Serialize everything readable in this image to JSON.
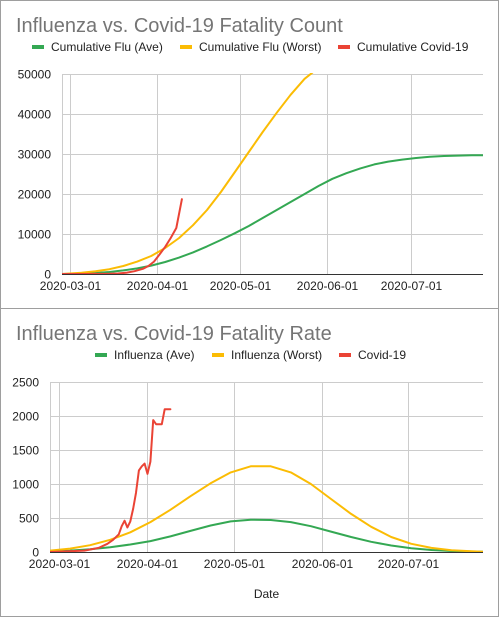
{
  "colors": {
    "green": "#34a853",
    "yellow": "#fbbc04",
    "red": "#ea4335",
    "grid": "#cccccc",
    "border": "#9e9e9e"
  },
  "chart_data": [
    {
      "type": "line",
      "title": "Influenza vs. Covid-19 Fatality Count",
      "xlabel": "",
      "ylabel": "",
      "legend_position": "top",
      "grid": true,
      "xlim": [
        "2020-02-27",
        "2020-07-27"
      ],
      "ylim": [
        0,
        50000
      ],
      "y_ticks": [
        "0",
        "10000",
        "20000",
        "30000",
        "40000",
        "50000"
      ],
      "y_tick_values": [
        0,
        10000,
        20000,
        30000,
        40000,
        50000
      ],
      "x_ticks": [
        "2020-03-01",
        "2020-04-01",
        "2020-05-01",
        "2020-06-01",
        "2020-07-01"
      ],
      "series": [
        {
          "name": "Cumulative Flu (Ave)",
          "color_key": "green",
          "x": [
            "2020-02-27",
            "2020-03-05",
            "2020-03-10",
            "2020-03-15",
            "2020-03-20",
            "2020-03-25",
            "2020-03-30",
            "2020-04-04",
            "2020-04-09",
            "2020-04-14",
            "2020-04-19",
            "2020-04-24",
            "2020-04-29",
            "2020-05-04",
            "2020-05-09",
            "2020-05-14",
            "2020-05-19",
            "2020-05-24",
            "2020-05-29",
            "2020-06-03",
            "2020-06-08",
            "2020-06-13",
            "2020-06-18",
            "2020-06-23",
            "2020-06-28",
            "2020-07-03",
            "2020-07-08",
            "2020-07-13",
            "2020-07-18",
            "2020-07-23",
            "2020-07-27"
          ],
          "y": [
            0,
            100,
            250,
            500,
            900,
            1400,
            2100,
            3000,
            4100,
            5400,
            6900,
            8500,
            10200,
            12000,
            14000,
            16000,
            18000,
            20000,
            22000,
            23800,
            25200,
            26400,
            27400,
            28100,
            28600,
            29000,
            29300,
            29500,
            29600,
            29700,
            29700
          ]
        },
        {
          "name": "Cumulative Flu (Worst)",
          "color_key": "yellow",
          "x": [
            "2020-02-27",
            "2020-03-05",
            "2020-03-10",
            "2020-03-15",
            "2020-03-20",
            "2020-03-25",
            "2020-03-30",
            "2020-04-04",
            "2020-04-09",
            "2020-04-14",
            "2020-04-19",
            "2020-04-24",
            "2020-04-29",
            "2020-05-04",
            "2020-05-09",
            "2020-05-14",
            "2020-05-19",
            "2020-05-24",
            "2020-05-28"
          ],
          "y": [
            0,
            300,
            700,
            1200,
            2000,
            3100,
            4500,
            6500,
            9000,
            12200,
            16000,
            20500,
            25500,
            30500,
            35500,
            40300,
            44800,
            48800,
            51000
          ]
        },
        {
          "name": "Cumulative Covid-19",
          "color_key": "red",
          "x": [
            "2020-02-27",
            "2020-03-05",
            "2020-03-10",
            "2020-03-15",
            "2020-03-18",
            "2020-03-21",
            "2020-03-24",
            "2020-03-27",
            "2020-03-29",
            "2020-03-31",
            "2020-04-02",
            "2020-04-04",
            "2020-04-06",
            "2020-04-08",
            "2020-04-10"
          ],
          "y": [
            0,
            10,
            28,
            60,
            120,
            300,
            700,
            1300,
            2000,
            3100,
            4900,
            6800,
            9000,
            11500,
            18700
          ]
        }
      ]
    },
    {
      "type": "line",
      "title": "Influenza vs. Covid-19 Fatality Rate",
      "xlabel": "Date",
      "ylabel": "",
      "legend_position": "top",
      "grid": true,
      "xlim": [
        "2020-02-27",
        "2020-07-27"
      ],
      "ylim": [
        0,
        2500
      ],
      "y_ticks": [
        "0",
        "500",
        "1000",
        "1500",
        "2000",
        "2500"
      ],
      "y_tick_values": [
        0,
        500,
        1000,
        1500,
        2000,
        2500
      ],
      "x_ticks": [
        "2020-03-01",
        "2020-04-01",
        "2020-05-01",
        "2020-06-01",
        "2020-07-01"
      ],
      "series": [
        {
          "name": "Influenza (Ave)",
          "color_key": "green",
          "x": [
            "2020-02-27",
            "2020-03-05",
            "2020-03-12",
            "2020-03-19",
            "2020-03-26",
            "2020-04-02",
            "2020-04-09",
            "2020-04-16",
            "2020-04-23",
            "2020-04-30",
            "2020-05-07",
            "2020-05-14",
            "2020-05-21",
            "2020-05-28",
            "2020-06-04",
            "2020-06-11",
            "2020-06-18",
            "2020-06-25",
            "2020-07-02",
            "2020-07-09",
            "2020-07-16",
            "2020-07-23",
            "2020-07-27"
          ],
          "y": [
            10,
            20,
            40,
            70,
            110,
            160,
            230,
            310,
            390,
            450,
            475,
            470,
            440,
            380,
            300,
            220,
            150,
            95,
            55,
            30,
            15,
            8,
            5
          ]
        },
        {
          "name": "Influenza (Worst)",
          "color_key": "yellow",
          "x": [
            "2020-02-27",
            "2020-03-05",
            "2020-03-12",
            "2020-03-19",
            "2020-03-26",
            "2020-04-02",
            "2020-04-09",
            "2020-04-16",
            "2020-04-23",
            "2020-04-30",
            "2020-05-07",
            "2020-05-14",
            "2020-05-21",
            "2020-05-28",
            "2020-06-04",
            "2020-06-11",
            "2020-06-18",
            "2020-06-25",
            "2020-07-02",
            "2020-07-09",
            "2020-07-16",
            "2020-07-23",
            "2020-07-27"
          ],
          "y": [
            20,
            50,
            100,
            180,
            290,
            440,
            620,
            820,
            1010,
            1170,
            1260,
            1260,
            1170,
            1000,
            780,
            560,
            370,
            220,
            120,
            60,
            25,
            10,
            5
          ]
        },
        {
          "name": "Covid-19",
          "color_key": "red",
          "x": [
            "2020-02-27",
            "2020-03-10",
            "2020-03-15",
            "2020-03-18",
            "2020-03-20",
            "2020-03-22",
            "2020-03-23",
            "2020-03-24",
            "2020-03-25",
            "2020-03-26",
            "2020-03-27",
            "2020-03-28",
            "2020-03-29",
            "2020-03-30",
            "2020-03-31",
            "2020-04-01",
            "2020-04-02",
            "2020-04-03",
            "2020-04-04",
            "2020-04-05",
            "2020-04-06",
            "2020-04-07",
            "2020-04-08",
            "2020-04-09"
          ],
          "y": [
            0,
            20,
            60,
            120,
            180,
            260,
            380,
            460,
            360,
            450,
            640,
            870,
            1200,
            1260,
            1300,
            1150,
            1330,
            1940,
            1880,
            1880,
            1880,
            2100,
            2100,
            2100
          ]
        }
      ]
    }
  ]
}
